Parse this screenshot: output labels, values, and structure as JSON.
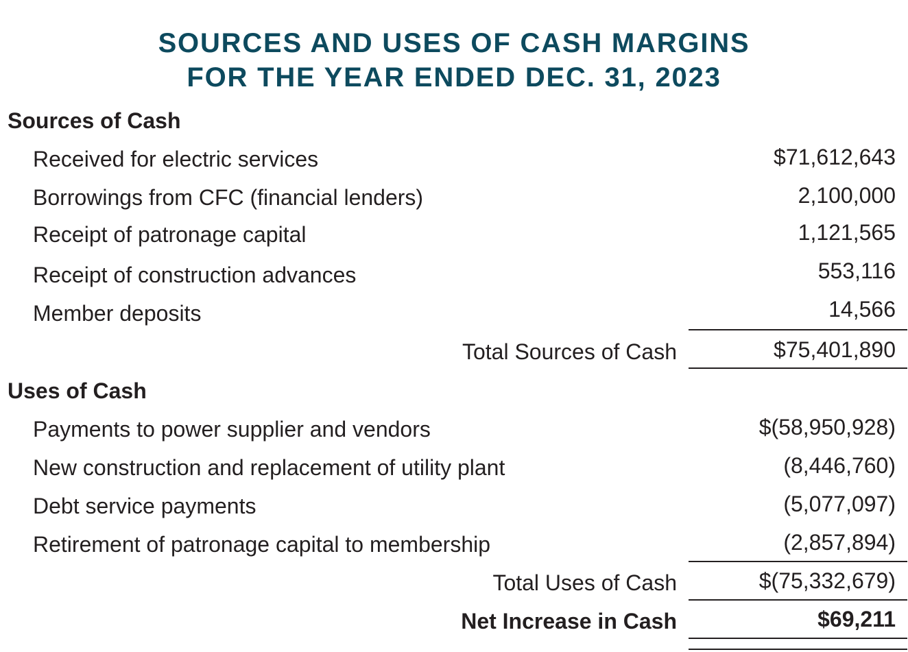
{
  "title": {
    "line1": "SOURCES AND USES OF CASH MARGINS",
    "line2": "FOR THE YEAR ENDED DEC. 31, 2023"
  },
  "sources": {
    "heading": "Sources of Cash",
    "items": [
      {
        "label": "Received for electric services",
        "amount": "$71,612,643"
      },
      {
        "label": "Borrowings from CFC (financial lenders)",
        "amount": "2,100,000"
      },
      {
        "label": "Receipt of patronage capital",
        "amount": "1,121,565"
      },
      {
        "label": "Receipt of construction advances",
        "amount": "553,116"
      },
      {
        "label": "Member deposits",
        "amount": "14,566"
      }
    ],
    "total_label": "Total Sources of Cash",
    "total_amount": "$75,401,890"
  },
  "uses": {
    "heading": "Uses of Cash",
    "items": [
      {
        "label": "Payments to power supplier and vendors",
        "amount": "$(58,950,928)"
      },
      {
        "label": "New construction and replacement of utility plant",
        "amount": "(8,446,760)"
      },
      {
        "label": "Debt service payments",
        "amount": "(5,077,097)"
      },
      {
        "label": "Retirement of patronage capital to membership",
        "amount": "(2,857,894)"
      }
    ],
    "total_label": "Total Uses of Cash",
    "total_amount": "$(75,332,679)"
  },
  "net": {
    "label": "Net Increase in Cash",
    "amount": "$69,211"
  },
  "colors": {
    "title": "#0d4a5e",
    "text": "#231f20"
  }
}
